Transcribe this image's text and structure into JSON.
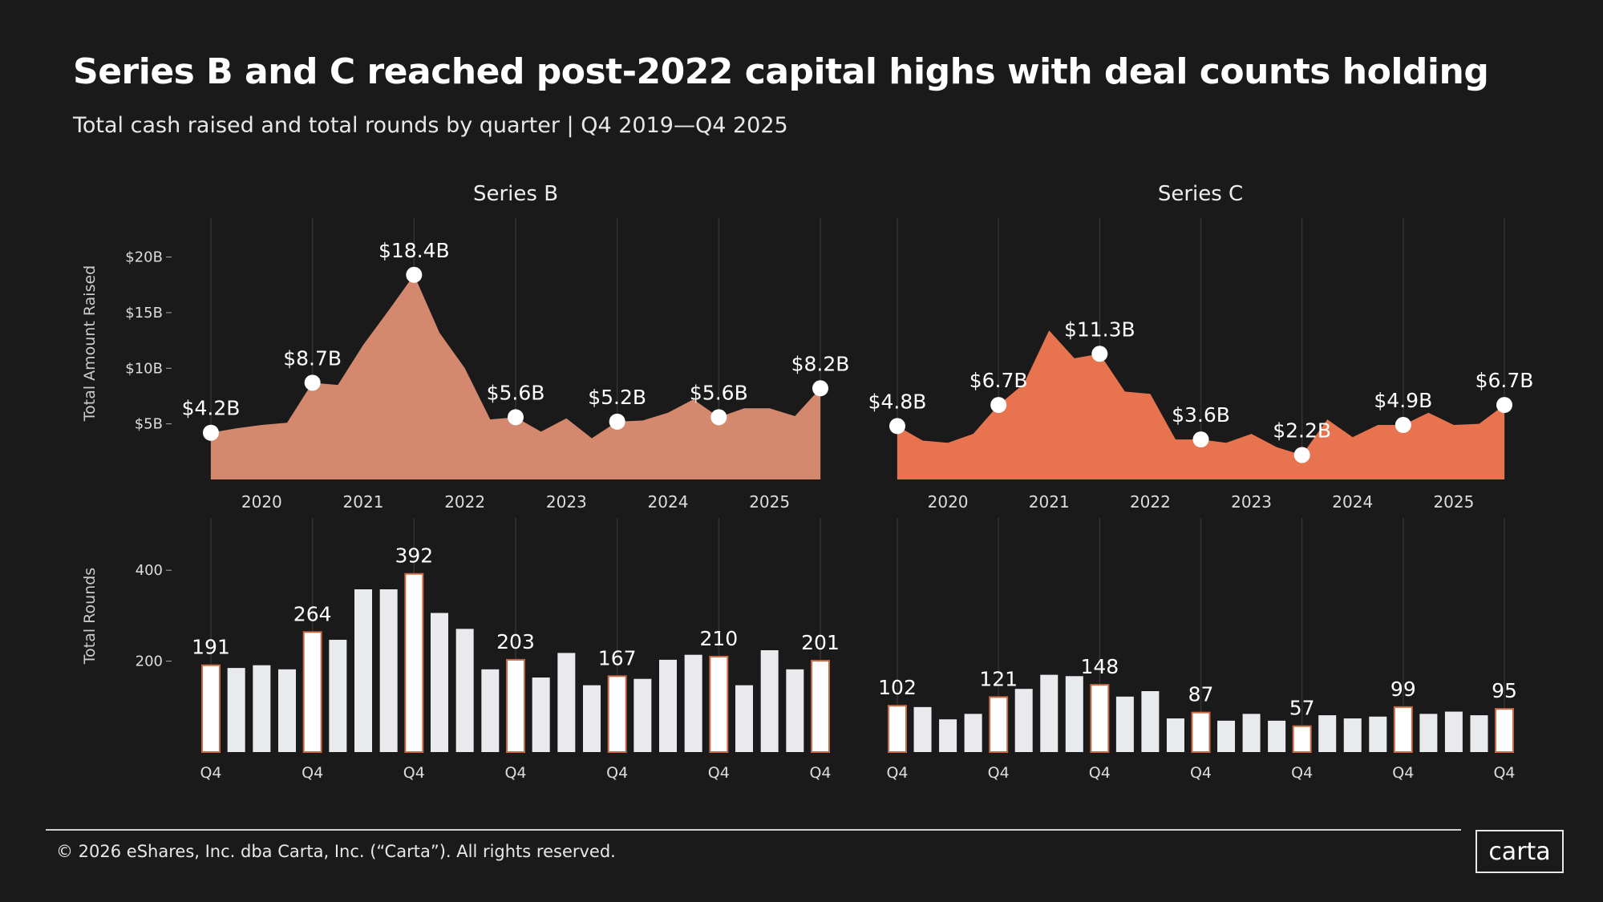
{
  "title": "Series B and C reached post-2022 capital highs with deal counts holding",
  "subtitle": "Total cash raised and total rounds by quarter | Q4 2019—Q4 2025",
  "footer": "© 2026 eShares, Inc. dba Carta, Inc. (“Carta”). All rights reserved.",
  "logo": "carta",
  "colors": {
    "background": "#1a1a1a",
    "series_b_fill": "#d4896f",
    "series_c_fill": "#e8734f",
    "bar": "#e9eaee",
    "highlight_bar": "#ffffff",
    "highlight_border": "#c96a45"
  },
  "chart_data": [
    {
      "type": "area",
      "panel": "Series B",
      "title": "Series B",
      "ylabel": "Total Amount Raised",
      "ylim": [
        0,
        22
      ],
      "yticks": [
        "$5B",
        "$10B",
        "$15B",
        "$20B"
      ],
      "ytick_values": [
        5,
        10,
        15,
        20
      ],
      "xticks": [
        "2020",
        "2021",
        "2022",
        "2023",
        "2024",
        "2025"
      ],
      "x": [
        "Q4 2019",
        "Q1 2020",
        "Q2 2020",
        "Q3 2020",
        "Q4 2020",
        "Q1 2021",
        "Q2 2021",
        "Q3 2021",
        "Q4 2021",
        "Q1 2022",
        "Q2 2022",
        "Q3 2022",
        "Q4 2022",
        "Q1 2023",
        "Q2 2023",
        "Q3 2023",
        "Q4 2023",
        "Q1 2024",
        "Q2 2024",
        "Q3 2024",
        "Q4 2024",
        "Q1 2025",
        "Q2 2025",
        "Q3 2025",
        "Q4 2025"
      ],
      "values": [
        4.2,
        4.6,
        4.9,
        5.1,
        8.7,
        8.5,
        12.1,
        15.2,
        18.4,
        13.2,
        10.0,
        5.4,
        5.6,
        4.3,
        5.5,
        3.7,
        5.2,
        5.3,
        6.0,
        7.2,
        5.6,
        6.4,
        6.4,
        5.7,
        8.2
      ],
      "data_labels": {
        "0": "$4.2B",
        "4": "$8.7B",
        "8": "$18.4B",
        "12": "$5.6B",
        "16": "$5.2B",
        "20": "$5.6B",
        "24": "$8.2B"
      },
      "grid": "vertical at Q4"
    },
    {
      "type": "area",
      "panel": "Series C",
      "title": "Series C",
      "ylim": [
        0,
        22
      ],
      "xticks": [
        "2020",
        "2021",
        "2022",
        "2023",
        "2024",
        "2025"
      ],
      "values": [
        4.8,
        3.5,
        3.3,
        4.1,
        6.7,
        8.6,
        13.4,
        10.9,
        11.3,
        7.9,
        7.7,
        3.6,
        3.6,
        3.3,
        4.1,
        2.9,
        2.2,
        5.4,
        3.8,
        4.9,
        4.9,
        6.0,
        4.9,
        5.0,
        6.7
      ],
      "data_labels": {
        "0": "$4.8B",
        "4": "$6.7B",
        "8": "$11.3B",
        "12": "$3.6B",
        "16": "$2.2B",
        "20": "$4.9B",
        "24": "$6.7B"
      },
      "grid": "vertical at Q4"
    },
    {
      "type": "bar",
      "panel": "Series B",
      "ylabel": "Total Rounds",
      "ylim": [
        0,
        480
      ],
      "yticks": [
        "200",
        "400"
      ],
      "ytick_values": [
        200,
        400
      ],
      "xtick_label": "Q4",
      "values": [
        191,
        185,
        191,
        182,
        264,
        247,
        358,
        358,
        392,
        306,
        271,
        182,
        203,
        164,
        218,
        147,
        167,
        161,
        203,
        214,
        210,
        147,
        224,
        182,
        201
      ],
      "data_labels": {
        "0": "191",
        "4": "264",
        "8": "392",
        "12": "203",
        "16": "167",
        "20": "210",
        "24": "201"
      }
    },
    {
      "type": "bar",
      "panel": "Series C",
      "ylim": [
        0,
        480
      ],
      "xtick_label": "Q4",
      "values": [
        102,
        99,
        72,
        84,
        121,
        139,
        170,
        167,
        148,
        122,
        134,
        74,
        87,
        69,
        84,
        69,
        57,
        81,
        74,
        78,
        99,
        84,
        89,
        81,
        95
      ],
      "data_labels": {
        "0": "102",
        "4": "121",
        "8": "148",
        "12": "87",
        "16": "57",
        "20": "99",
        "24": "95"
      }
    }
  ]
}
